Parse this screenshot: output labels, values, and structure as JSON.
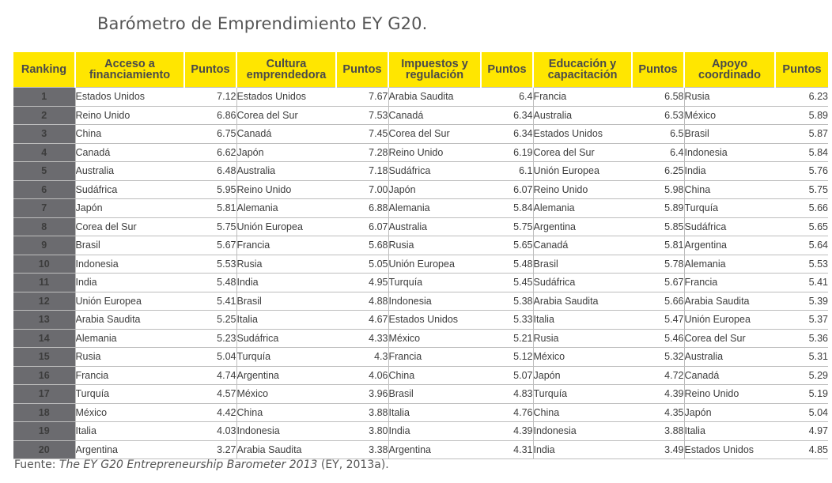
{
  "title": "Barómetro de Emprendimiento EY G20.",
  "table": {
    "headers": [
      "Ranking",
      "Acceso a financiamiento",
      "Puntos",
      "Cultura emprendedora",
      "Puntos",
      "Impuestos y regulación",
      "Puntos",
      "Educación y capacitación",
      "Puntos",
      "Apoyo coordinado",
      "Puntos"
    ],
    "rows": [
      [
        "1",
        "Estados Unidos",
        "7.12",
        "Estados Unidos",
        "7.67",
        "Arabia Saudita",
        "6.4",
        "Francia",
        "6.58",
        "Rusia",
        "6.23"
      ],
      [
        "2",
        "Reino Unido",
        "6.86",
        "Corea del Sur",
        "7.53",
        "Canadá",
        "6.34",
        "Australia",
        "6.53",
        "México",
        "5.89"
      ],
      [
        "3",
        "China",
        "6.75",
        "Canadá",
        "7.45",
        "Corea del Sur",
        "6.34",
        "Estados Unidos",
        "6.5",
        "Brasil",
        "5.87"
      ],
      [
        "4",
        "Canadá",
        "6.62",
        "Japón",
        "7.28",
        "Reino Unido",
        "6.19",
        "Corea del Sur",
        "6.4",
        "Indonesia",
        "5.84"
      ],
      [
        "5",
        "Australia",
        "6.48",
        "Australia",
        "7.18",
        "Sudáfrica",
        "6.1",
        "Unión Europea",
        "6.25",
        "India",
        "5.76"
      ],
      [
        "6",
        "Sudáfrica",
        "5.95",
        "Reino Unido",
        "7.00",
        "Japón",
        "6.07",
        "Reino Unido",
        "5.98",
        "China",
        "5.75"
      ],
      [
        "7",
        "Japón",
        "5.81",
        "Alemania",
        "6.88",
        "Alemania",
        "5.84",
        "Alemania",
        "5.89",
        "Turquía",
        "5.66"
      ],
      [
        "8",
        "Corea del Sur",
        "5.75",
        "Unión Europea",
        "6.07",
        "Australia",
        "5.75",
        "Argentina",
        "5.85",
        "Sudáfrica",
        "5.65"
      ],
      [
        "9",
        "Brasil",
        "5.67",
        "Francia",
        "5.68",
        "Rusia",
        "5.65",
        "Canadá",
        "5.81",
        "Argentina",
        "5.64"
      ],
      [
        "10",
        "Indonesia",
        "5.53",
        "Rusia",
        "5.05",
        "Unión Europea",
        "5.48",
        "Brasil",
        "5.78",
        "Alemania",
        "5.53"
      ],
      [
        "11",
        "India",
        "5.48",
        "India",
        "4.95",
        "Turquía",
        "5.45",
        "Sudáfrica",
        "5.67",
        "Francia",
        "5.41"
      ],
      [
        "12",
        "Unión Europea",
        "5.41",
        "Brasil",
        "4.88",
        "Indonesia",
        "5.38",
        "Arabia Saudita",
        "5.66",
        "Arabia Saudita",
        "5.39"
      ],
      [
        "13",
        "Arabia Saudita",
        "5.25",
        "Italia",
        "4.67",
        "Estados Unidos",
        "5.33",
        "Italia",
        "5.47",
        "Unión Europea",
        "5.37"
      ],
      [
        "14",
        "Alemania",
        "5.23",
        "Sudáfrica",
        "4.33",
        "México",
        "5.21",
        "Rusia",
        "5.46",
        "Corea del Sur",
        "5.36"
      ],
      [
        "15",
        "Rusia",
        "5.04",
        "Turquía",
        "4.3",
        "Francia",
        "5.12",
        "México",
        "5.32",
        "Australia",
        "5.31"
      ],
      [
        "16",
        "Francia",
        "4.74",
        "Argentina",
        "4.06",
        "China",
        "5.07",
        "Japón",
        "4.72",
        "Canadá",
        "5.29"
      ],
      [
        "17",
        "Turquía",
        "4.57",
        "México",
        "3.96",
        "Brasil",
        "4.83",
        "Turquía",
        "4.39",
        "Reino Unido",
        "5.19"
      ],
      [
        "18",
        "México",
        "4.42",
        "China",
        "3.88",
        "Italia",
        "4.76",
        "China",
        "4.35",
        "Japón",
        "5.04"
      ],
      [
        "19",
        "Italia",
        "4.03",
        "Indonesia",
        "3.80",
        "India",
        "4.39",
        "Indonesia",
        "3.88",
        "Italia",
        "4.97"
      ],
      [
        "20",
        "Argentina",
        "3.27",
        "Arabia Saudita",
        "3.38",
        "Argentina",
        "4.31",
        "India",
        "3.49",
        "Estados Unidos",
        "4.85"
      ]
    ]
  },
  "source": {
    "label": "Fuente:",
    "title": "The EY G20 Entrepreneurship Barometer 2013",
    "citation": " (EY, 2013a)."
  }
}
